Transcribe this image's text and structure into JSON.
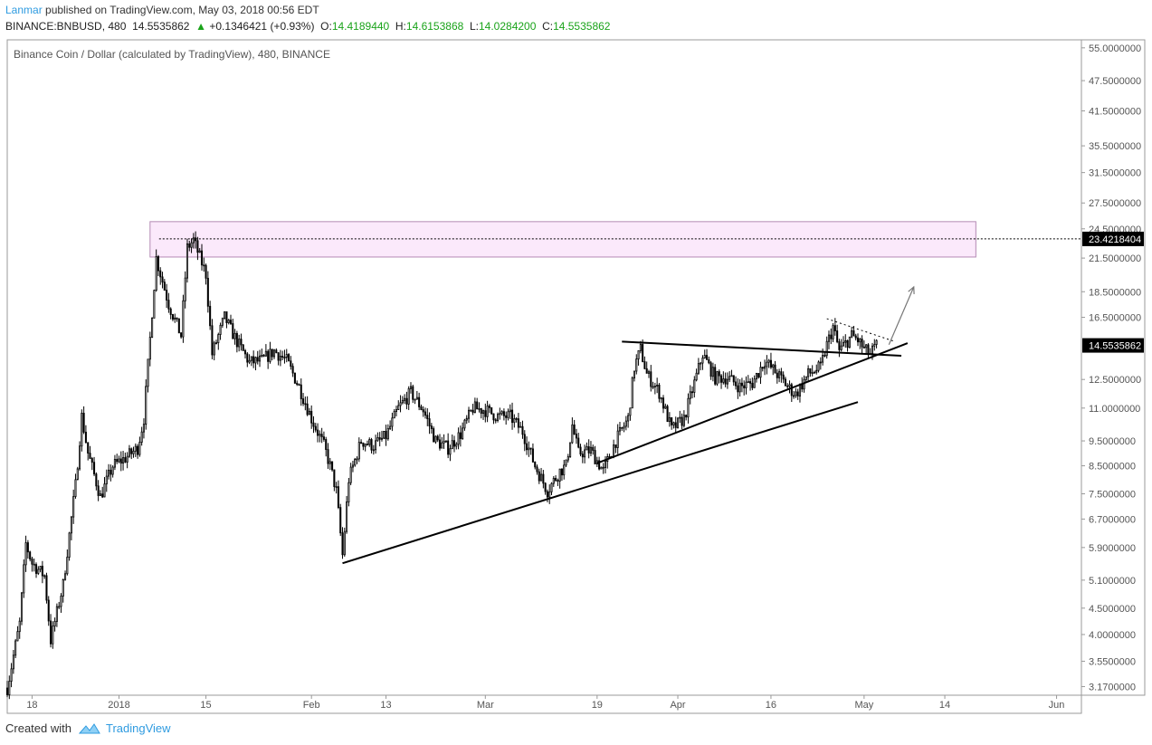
{
  "header": {
    "author": "Lanmar",
    "published": "published on TradingView.com, May 03, 2018 00:56 EDT",
    "symbol": "BINANCE:BNBUSD, 480",
    "last": "14.5535862",
    "change": "+0.1346421 (+0.93%)",
    "o_label": "O:",
    "o_val": "14.4189440",
    "h_label": "H:",
    "h_val": "14.6153868",
    "l_label": "L:",
    "l_val": "14.0284200",
    "c_label": "C:",
    "c_val": "14.5535862"
  },
  "footer": {
    "created_with": "Created with",
    "brand": "TradingView"
  },
  "colors": {
    "grid_border": "#9a9a9a",
    "candle": "#000000",
    "zone_fill": "#fbe9fb",
    "zone_stroke": "#b48ab4",
    "axis_text": "#555555",
    "price_tag": "#000000"
  },
  "chart_data": {
    "type": "candlestick",
    "title": "Binance Coin / Dollar (calculated by TradingView), 480, BINANCE",
    "y_scale": "log",
    "ylim": [
      3.05,
      57
    ],
    "y_ticks": [
      "55.0000000",
      "47.5000000",
      "41.5000000",
      "35.5000000",
      "31.5000000",
      "27.5000000",
      "24.5000000",
      "21.5000000",
      "18.5000000",
      "16.5000000",
      "12.5000000",
      "11.0000000",
      "9.5000000",
      "8.5000000",
      "7.5000000",
      "6.7000000",
      "5.9000000",
      "5.1000000",
      "4.5000000",
      "4.0000000",
      "3.5500000",
      "3.1700000"
    ],
    "x_range": [
      "2017-12-14",
      "2018-06-05"
    ],
    "x_ticks": [
      {
        "date": "2017-12-18",
        "label": "18"
      },
      {
        "date": "2018-01-01",
        "label": "2018"
      },
      {
        "date": "2018-01-15",
        "label": "15"
      },
      {
        "date": "2018-02-01",
        "label": "Feb"
      },
      {
        "date": "2018-02-13",
        "label": "13"
      },
      {
        "date": "2018-03-01",
        "label": "Mar"
      },
      {
        "date": "2018-03-19",
        "label": "19"
      },
      {
        "date": "2018-04-01",
        "label": "Apr"
      },
      {
        "date": "2018-04-16",
        "label": "16"
      },
      {
        "date": "2018-05-01",
        "label": "May"
      },
      {
        "date": "2018-05-14",
        "label": "14"
      },
      {
        "date": "2018-06-01",
        "label": "Jun"
      }
    ],
    "price_path": [
      [
        "2017-12-14",
        3.15
      ],
      [
        "2017-12-16",
        4.2
      ],
      [
        "2017-12-17",
        6.0
      ],
      [
        "2017-12-18",
        5.5
      ],
      [
        "2017-12-20",
        5.2
      ],
      [
        "2017-12-21",
        3.9
      ],
      [
        "2017-12-23",
        5.0
      ],
      [
        "2017-12-25",
        7.8
      ],
      [
        "2017-12-26",
        10.6
      ],
      [
        "2017-12-27",
        9.0
      ],
      [
        "2017-12-29",
        7.4
      ],
      [
        "2017-12-31",
        8.5
      ],
      [
        "2018-01-02",
        8.8
      ],
      [
        "2018-01-04",
        9.2
      ],
      [
        "2018-01-05",
        10.5
      ],
      [
        "2018-01-06",
        15.0
      ],
      [
        "2018-01-07",
        21.5
      ],
      [
        "2018-01-09",
        17.5
      ],
      [
        "2018-01-11",
        15.2
      ],
      [
        "2018-01-12",
        22.5
      ],
      [
        "2018-01-13",
        23.3
      ],
      [
        "2018-01-15",
        20.0
      ],
      [
        "2018-01-16",
        14.0
      ],
      [
        "2018-01-18",
        16.5
      ],
      [
        "2018-01-20",
        14.8
      ],
      [
        "2018-01-22",
        13.5
      ],
      [
        "2018-01-24",
        13.6
      ],
      [
        "2018-01-26",
        14.2
      ],
      [
        "2018-01-28",
        13.6
      ],
      [
        "2018-01-30",
        12.1
      ],
      [
        "2018-02-01",
        10.5
      ],
      [
        "2018-02-03",
        9.3
      ],
      [
        "2018-02-04",
        8.5
      ],
      [
        "2018-02-05",
        7.6
      ],
      [
        "2018-02-06",
        5.7
      ],
      [
        "2018-02-07",
        8.0
      ],
      [
        "2018-02-09",
        9.5
      ],
      [
        "2018-02-11",
        9.3
      ],
      [
        "2018-02-13",
        9.7
      ],
      [
        "2018-02-15",
        11.0
      ],
      [
        "2018-02-17",
        11.8
      ],
      [
        "2018-02-19",
        10.9
      ],
      [
        "2018-02-21",
        9.5
      ],
      [
        "2018-02-23",
        9.2
      ],
      [
        "2018-02-25",
        9.8
      ],
      [
        "2018-02-27",
        11.0
      ],
      [
        "2018-03-01",
        10.9
      ],
      [
        "2018-03-03",
        10.6
      ],
      [
        "2018-03-05",
        10.6
      ],
      [
        "2018-03-07",
        9.9
      ],
      [
        "2018-03-09",
        8.5
      ],
      [
        "2018-03-11",
        7.6
      ],
      [
        "2018-03-13",
        8.3
      ],
      [
        "2018-03-14",
        8.5
      ],
      [
        "2018-03-15",
        10.2
      ],
      [
        "2018-03-16",
        9.0
      ],
      [
        "2018-03-18",
        9.1
      ],
      [
        "2018-03-20",
        8.3
      ],
      [
        "2018-03-22",
        9.5
      ],
      [
        "2018-03-24",
        10.5
      ],
      [
        "2018-03-25",
        13.2
      ],
      [
        "2018-03-26",
        14.3
      ],
      [
        "2018-03-27",
        12.8
      ],
      [
        "2018-03-29",
        11.8
      ],
      [
        "2018-03-31",
        10.0
      ],
      [
        "2018-04-02",
        10.5
      ],
      [
        "2018-04-04",
        12.7
      ],
      [
        "2018-04-05",
        14.0
      ],
      [
        "2018-04-07",
        12.6
      ],
      [
        "2018-04-09",
        12.6
      ],
      [
        "2018-04-11",
        12.1
      ],
      [
        "2018-04-13",
        12.3
      ],
      [
        "2018-04-15",
        13.6
      ],
      [
        "2018-04-17",
        12.8
      ],
      [
        "2018-04-19",
        12.0
      ],
      [
        "2018-04-20",
        11.7
      ],
      [
        "2018-04-22",
        12.8
      ],
      [
        "2018-04-24",
        13.2
      ],
      [
        "2018-04-25",
        14.6
      ],
      [
        "2018-04-26",
        15.8
      ],
      [
        "2018-04-27",
        14.2
      ],
      [
        "2018-04-29",
        15.2
      ],
      [
        "2018-04-30",
        14.9
      ],
      [
        "2018-05-01",
        14.3
      ],
      [
        "2018-05-02",
        14.0
      ],
      [
        "2018-05-03",
        14.55
      ]
    ],
    "resistance_zone": {
      "from": "2018-01-06",
      "to": "2018-05-19",
      "low": 21.6,
      "high": 25.3
    },
    "drawings": [
      {
        "name": "long-support",
        "from": [
          "2018-02-06",
          5.5
        ],
        "to": [
          "2018-04-30",
          11.3
        ],
        "style": "solid"
      },
      {
        "name": "rising-support",
        "from": [
          "2018-03-19",
          8.6
        ],
        "to": [
          "2018-05-08",
          14.7
        ],
        "style": "solid"
      },
      {
        "name": "triangle-top",
        "from": [
          "2018-03-23",
          14.8
        ],
        "to": [
          "2018-05-07",
          13.9
        ],
        "style": "solid"
      },
      {
        "name": "dotted-resistance",
        "from": [
          "2018-04-25",
          16.4
        ],
        "to": [
          "2018-05-06",
          14.8
        ],
        "style": "dotted"
      },
      {
        "name": "breakout-arrow",
        "from": [
          "2018-05-05",
          14.6
        ],
        "to": [
          "2018-05-09",
          18.9
        ],
        "style": "arrow"
      }
    ],
    "level_line": {
      "value": 23.4218404,
      "label": "23.4218404"
    },
    "last_price": {
      "value": 14.5535862,
      "label": "14.5535862"
    }
  }
}
